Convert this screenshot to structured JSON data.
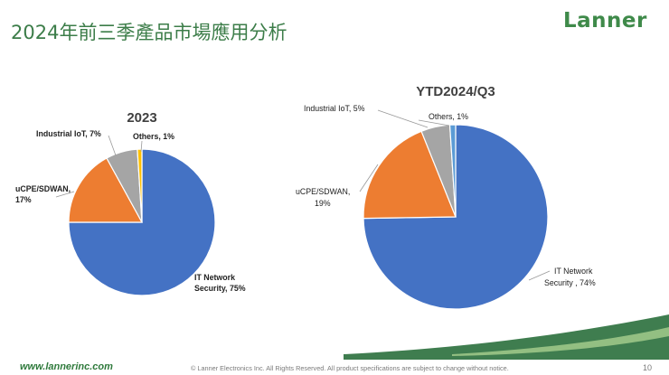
{
  "slide": {
    "title": "2024年前三季產品市場應用分析",
    "logo": "Lanner",
    "footer_url": "www.lannerinc.com",
    "footer_copyright": "© Lanner Electronics Inc. All Rights Reserved. All product specifications are subject to change without notice.",
    "page_number": "10",
    "brand_color": "#3c7d49"
  },
  "chart_data": [
    {
      "type": "pie",
      "title": "2023",
      "categories": [
        "IT Network Security",
        "uCPE/SDWAN",
        "Industrial IoT",
        "Others"
      ],
      "values": [
        75,
        17,
        7,
        1
      ],
      "labels": [
        "IT Network Security, 75%",
        "uCPE/SDWAN, 17%",
        "Industrial IoT, 7%",
        "Others, 1%"
      ],
      "colors": [
        "#4472c4",
        "#ed7d31",
        "#a5a5a5",
        "#ffc000"
      ],
      "label_style": "bold",
      "legend": "none"
    },
    {
      "type": "pie",
      "title": "YTD2024/Q3",
      "categories": [
        "IT Network Security",
        "uCPE/SDWAN",
        "Industrial IoT",
        "Others"
      ],
      "values": [
        74,
        19,
        5,
        1
      ],
      "labels": [
        "IT Network Security , 74%",
        "uCPE/SDWAN, 19%",
        "Industrial IoT, 5%",
        "Others, 1%"
      ],
      "colors": [
        "#4472c4",
        "#ed7d31",
        "#a5a5a5",
        "#5b9bd5"
      ],
      "label_style": "normal",
      "legend": "none"
    }
  ]
}
